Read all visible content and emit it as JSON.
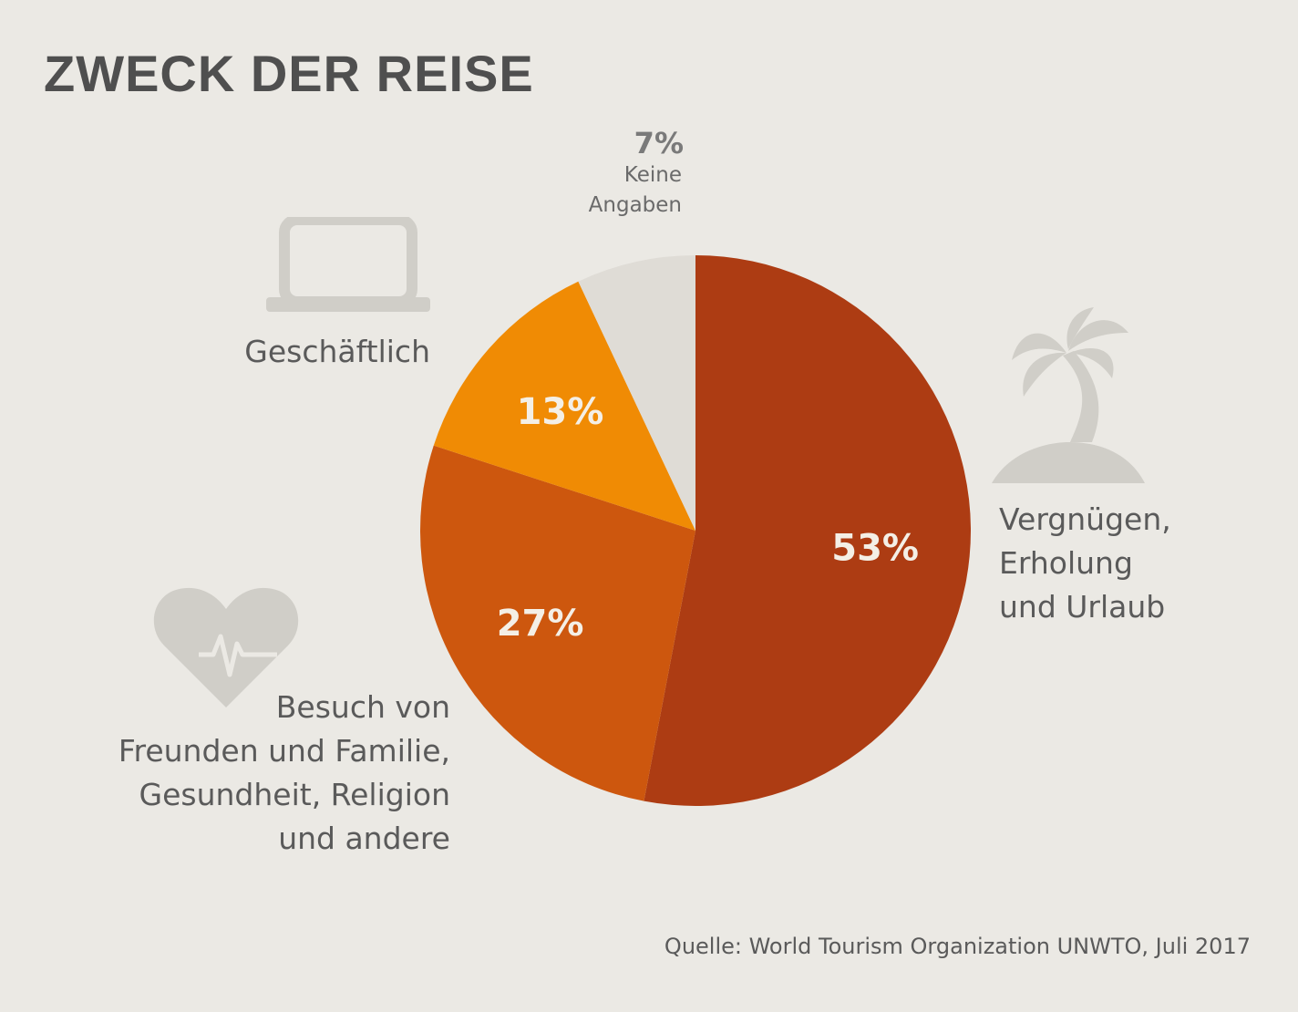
{
  "title": "ZWECK DER REISE",
  "source": "Quelle: World Tourism Organization UNWTO, Juli 2017",
  "labels": {
    "leisure": [
      "Vergnügen,",
      "Erholung",
      "und Urlaub"
    ],
    "business": [
      "Geschäftlich"
    ],
    "visit": [
      "Besuch von",
      "Freunden und Familie,",
      "Gesundheit, Religion",
      "und andere"
    ],
    "unknown_pct": "7%",
    "unknown": [
      "Keine",
      "Angaben"
    ]
  },
  "icons": {
    "leisure": "palm-island-icon",
    "business": "laptop-icon",
    "visit": "heart-pulse-icon"
  },
  "chart_data": {
    "type": "pie",
    "title": "ZWECK DER REISE",
    "unit": "%",
    "start": "top, clockwise",
    "slices": [
      {
        "name": "Vergnügen, Erholung und Urlaub",
        "value": 53,
        "label": "53%",
        "color": "#ad3c13"
      },
      {
        "name": "Besuch von Freunden und Familie, Gesundheit, Religion und andere",
        "value": 27,
        "label": "27%",
        "color": "#cd570e"
      },
      {
        "name": "Geschäftlich",
        "value": 13,
        "label": "13%",
        "color": "#f08b04"
      },
      {
        "name": "Keine Angaben",
        "value": 7,
        "label": "",
        "color": "#dfdcd6"
      }
    ]
  }
}
